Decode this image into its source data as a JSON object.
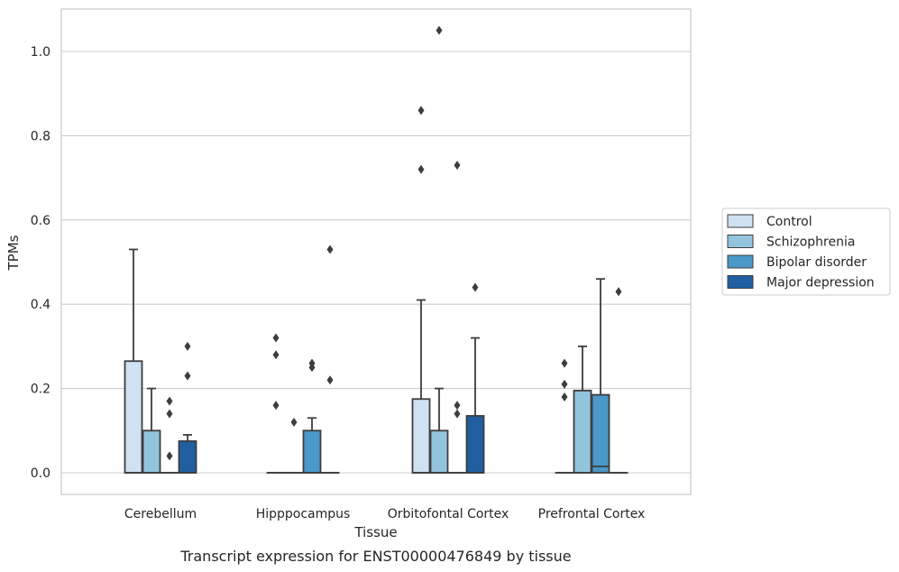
{
  "chart_data": {
    "type": "box",
    "caption": "Transcript expression for ENST00000476849 by tissue",
    "xlabel": "Tissue",
    "ylabel": "TPMs",
    "ylim": [
      -0.05,
      1.1
    ],
    "yticks": [
      0.0,
      0.2,
      0.4,
      0.6,
      0.8,
      1.0
    ],
    "ytick_labels": [
      "0.0",
      "0.2",
      "0.4",
      "0.6",
      "0.8",
      "1.0"
    ],
    "grid": "horizontal",
    "legend_position": "right",
    "categories": [
      "Cerebellum",
      "Hipppocampus",
      "Orbitofontal Cortex",
      "Prefrontal Cortex"
    ],
    "series": [
      {
        "name": "Control",
        "color": "#cfe1f2",
        "boxes": [
          {
            "q1": 0,
            "median": 0,
            "q3": 0.265,
            "whislo": 0,
            "whishi": 0.53,
            "fliers": []
          },
          {
            "q1": 0,
            "median": 0,
            "q3": 0,
            "whislo": 0,
            "whishi": 0,
            "fliers": [
              0.16,
              0.28,
              0.32
            ]
          },
          {
            "q1": 0,
            "median": 0,
            "q3": 0.175,
            "whislo": 0,
            "whishi": 0.41,
            "fliers": [
              0.72,
              0.86
            ]
          },
          {
            "q1": 0,
            "median": 0,
            "q3": 0,
            "whislo": 0,
            "whishi": 0,
            "fliers": [
              0.18,
              0.21,
              0.26
            ]
          }
        ]
      },
      {
        "name": "Schizophrenia",
        "color": "#93c4de",
        "boxes": [
          {
            "q1": 0,
            "median": 0,
            "q3": 0.1,
            "whislo": 0,
            "whishi": 0.2,
            "fliers": []
          },
          {
            "q1": 0,
            "median": 0,
            "q3": 0,
            "whislo": 0,
            "whishi": 0,
            "fliers": [
              0.12
            ]
          },
          {
            "q1": 0,
            "median": 0,
            "q3": 0.1,
            "whislo": 0,
            "whishi": 0.2,
            "fliers": [
              1.05
            ]
          },
          {
            "q1": 0,
            "median": 0,
            "q3": 0.195,
            "whislo": 0,
            "whishi": 0.3,
            "fliers": []
          }
        ]
      },
      {
        "name": "Bipolar disorder",
        "color": "#4b98c9",
        "boxes": [
          {
            "q1": 0,
            "median": 0,
            "q3": 0,
            "whislo": 0,
            "whishi": 0,
            "fliers": [
              0.04,
              0.14,
              0.17
            ]
          },
          {
            "q1": 0,
            "median": 0,
            "q3": 0.1,
            "whislo": 0,
            "whishi": 0.13,
            "fliers": [
              0.25,
              0.26
            ]
          },
          {
            "q1": 0,
            "median": 0,
            "q3": 0,
            "whislo": 0,
            "whishi": 0,
            "fliers": [
              0.14,
              0.16,
              0.73
            ]
          },
          {
            "q1": 0,
            "median": 0.015,
            "q3": 0.185,
            "whislo": 0,
            "whishi": 0.46,
            "fliers": []
          }
        ]
      },
      {
        "name": "Major depression",
        "color": "#1f5fa2",
        "boxes": [
          {
            "q1": 0,
            "median": 0,
            "q3": 0.075,
            "whislo": 0,
            "whishi": 0.09,
            "fliers": [
              0.23,
              0.3
            ]
          },
          {
            "q1": 0,
            "median": 0,
            "q3": 0,
            "whislo": 0,
            "whishi": 0,
            "fliers": [
              0.22,
              0.53
            ]
          },
          {
            "q1": 0,
            "median": 0,
            "q3": 0.135,
            "whislo": 0,
            "whishi": 0.32,
            "fliers": [
              0.44
            ]
          },
          {
            "q1": 0,
            "median": 0,
            "q3": 0,
            "whislo": 0,
            "whishi": 0,
            "fliers": [
              0.43
            ]
          }
        ]
      }
    ]
  }
}
